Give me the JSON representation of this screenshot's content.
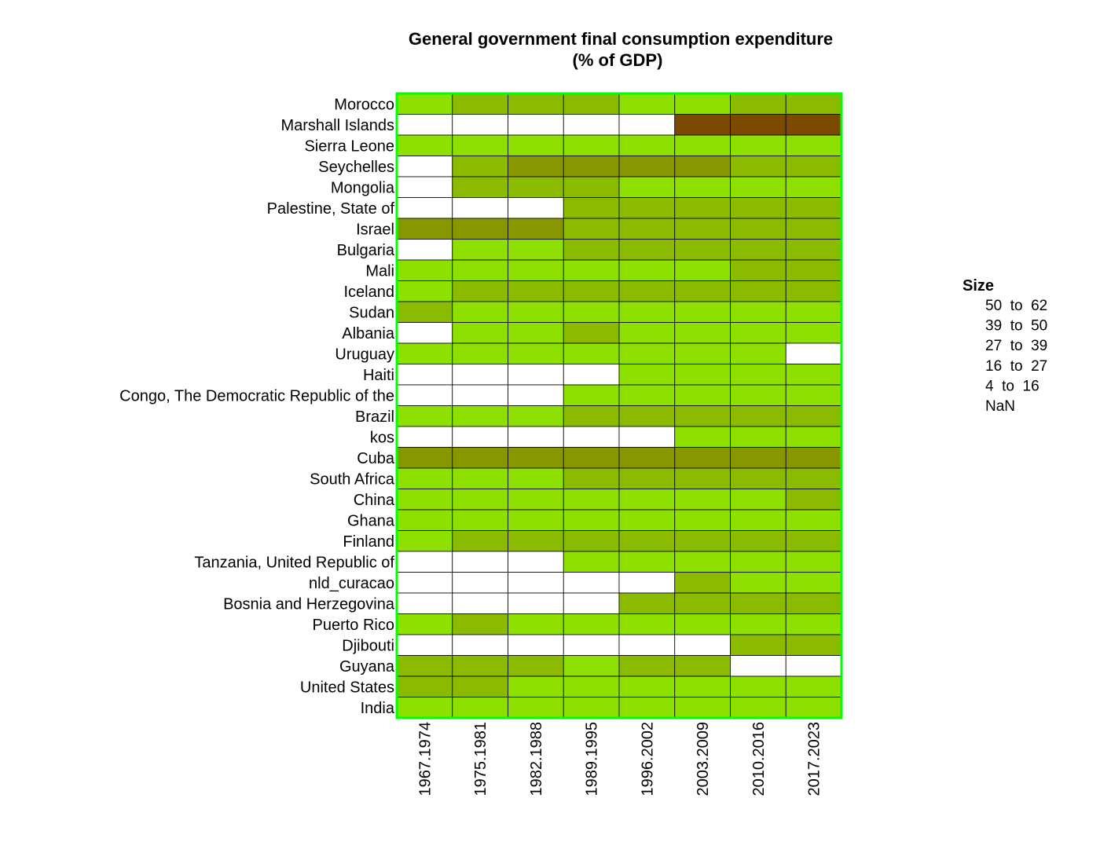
{
  "chart_data": {
    "type": "heatmap",
    "title": "General government final consumption expenditure",
    "subtitle": "(% of GDP)",
    "columns": [
      "1967.1974",
      "1975.1981",
      "1982.1988",
      "1989.1995",
      "1996.2002",
      "2003.2009",
      "2010.2016",
      "2017.2023"
    ],
    "rows": [
      "Morocco",
      "Marshall Islands",
      "Sierra Leone",
      "Seychelles",
      "Mongolia",
      "Palestine, State of",
      "Israel",
      "Bulgaria",
      "Mali",
      "Iceland",
      "Sudan",
      "Albania",
      "Uruguay",
      "Haiti",
      "Congo, The Democratic Republic of the",
      "Brazil",
      "kos",
      "Cuba",
      "South Africa",
      "China",
      "Ghana",
      "Finland",
      "Tanzania, United Republic of",
      "nld_curacao",
      "Bosnia and Herzegovina",
      "Puerto Rico",
      "Djibouti",
      "Guyana",
      "United States",
      "India"
    ],
    "categories": [
      [
        1,
        2,
        2,
        2,
        1,
        1,
        2,
        2
      ],
      [
        null,
        null,
        null,
        null,
        null,
        5,
        5,
        5
      ],
      [
        1,
        1,
        1,
        1,
        1,
        1,
        1,
        1
      ],
      [
        null,
        2,
        3,
        3,
        3,
        3,
        2,
        2
      ],
      [
        null,
        2,
        2,
        2,
        1,
        1,
        1,
        1
      ],
      [
        null,
        null,
        null,
        2,
        2,
        2,
        2,
        2
      ],
      [
        3,
        3,
        3,
        2,
        2,
        2,
        2,
        2
      ],
      [
        null,
        1,
        1,
        2,
        2,
        2,
        2,
        2
      ],
      [
        1,
        1,
        1,
        1,
        1,
        1,
        2,
        2
      ],
      [
        1,
        2,
        2,
        2,
        2,
        2,
        2,
        2
      ],
      [
        2,
        1,
        1,
        1,
        1,
        1,
        1,
        1
      ],
      [
        null,
        1,
        1,
        2,
        1,
        1,
        1,
        1
      ],
      [
        1,
        1,
        1,
        1,
        1,
        1,
        1,
        null
      ],
      [
        null,
        null,
        null,
        null,
        1,
        1,
        1,
        1
      ],
      [
        null,
        null,
        null,
        1,
        1,
        1,
        1,
        1
      ],
      [
        1,
        1,
        1,
        2,
        2,
        2,
        2,
        2
      ],
      [
        null,
        null,
        null,
        null,
        null,
        1,
        1,
        1
      ],
      [
        3,
        3,
        3,
        3,
        3,
        3,
        3,
        3
      ],
      [
        1,
        1,
        1,
        2,
        2,
        2,
        2,
        2
      ],
      [
        1,
        1,
        1,
        1,
        1,
        1,
        1,
        2
      ],
      [
        1,
        1,
        1,
        1,
        1,
        1,
        1,
        1
      ],
      [
        1,
        2,
        2,
        2,
        2,
        2,
        2,
        2
      ],
      [
        null,
        null,
        null,
        1,
        1,
        1,
        1,
        1
      ],
      [
        null,
        null,
        null,
        null,
        null,
        2,
        1,
        1
      ],
      [
        null,
        null,
        null,
        null,
        2,
        2,
        2,
        2
      ],
      [
        1,
        2,
        1,
        1,
        1,
        1,
        1,
        1
      ],
      [
        null,
        null,
        null,
        null,
        null,
        null,
        2,
        2
      ],
      [
        2,
        2,
        2,
        1,
        2,
        2,
        null,
        null
      ],
      [
        2,
        2,
        1,
        1,
        1,
        1,
        1,
        1
      ],
      [
        1,
        1,
        1,
        1,
        1,
        1,
        1,
        1
      ]
    ],
    "legend": {
      "title": "Size",
      "items": [
        "50  to  62",
        "39  to  50",
        "27  to  39",
        "16  to  27",
        "4  to  16",
        "NaN"
      ]
    },
    "category_legend_index": {
      "1": 4,
      "2": 3,
      "3": 2,
      "5": 0
    },
    "colors": {
      "1": "#8ee000",
      "2": "#8abb00",
      "3": "#889600",
      "5": "#7b4a00",
      "nan": "#ffffff",
      "border": "#00ff00",
      "grid": "#000000"
    }
  }
}
